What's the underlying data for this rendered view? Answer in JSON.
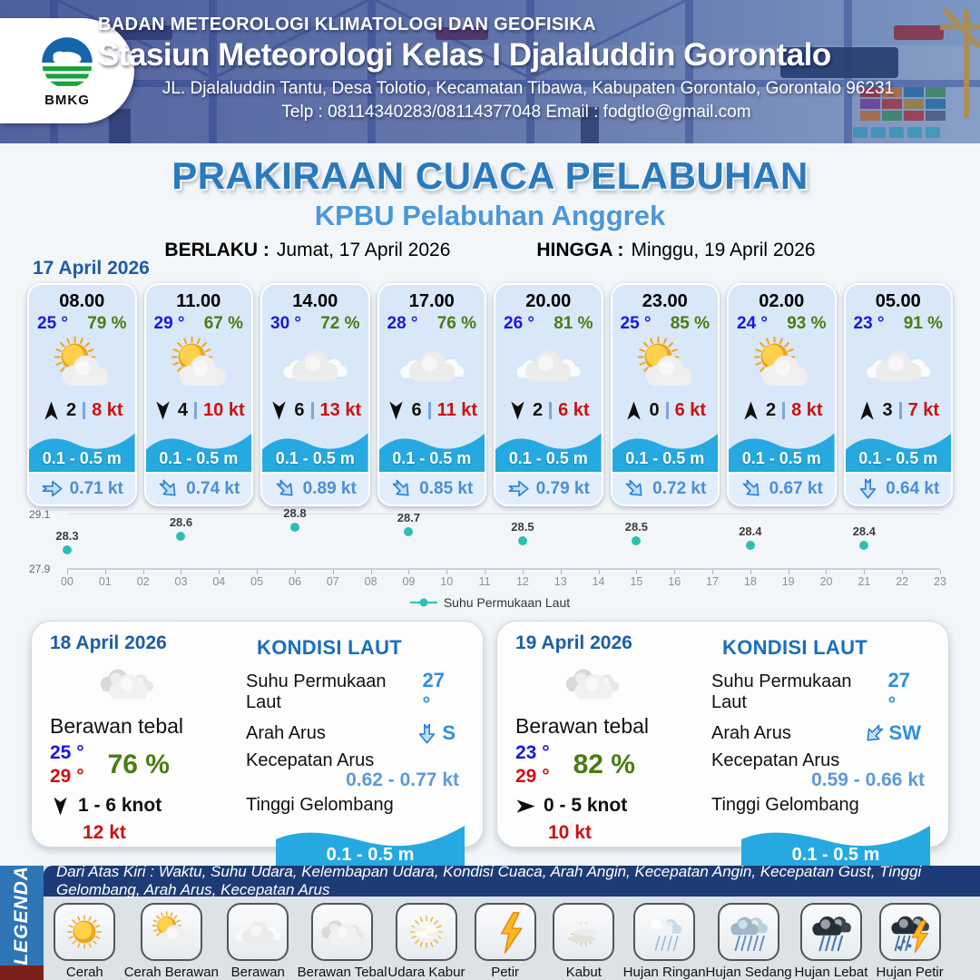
{
  "header": {
    "agency": "BADAN METEOROLOGI KLIMATOLOGI DAN GEOFISIKA",
    "station": "Stasiun Meteorologi Kelas I Djalaluddin Gorontalo",
    "address": "JL. Djalaluddin Tantu, Desa Tolotio, Kecamatan Tibawa, Kabupaten Gorontalo, Gorontalo 96231",
    "contact": "Telp : 08114340283/08114377048 Email : fodgtlo@gmail.com",
    "logo_text": "BMKG"
  },
  "title": {
    "main": "PRAKIRAAN CUACA PELABUHAN",
    "subtitle": "KPBU Pelabuhan Anggrek",
    "valid_from_label": "BERLAKU :",
    "valid_from": "Jumat, 17 April 2026",
    "valid_to_label": "HINGGA :",
    "valid_to": "Minggu, 19 April 2026"
  },
  "forecast_date": "17 April 2026",
  "hourly_cards": [
    {
      "time": "08.00",
      "temp": "25 °",
      "humidity": "79 %",
      "icon": "cerah-berawan",
      "wind_dir": "N",
      "wind_speed": "2",
      "gust": "8 kt",
      "wave": "0.1 - 0.5 m",
      "current_dir": "E",
      "current_speed": "0.71 kt"
    },
    {
      "time": "11.00",
      "temp": "29 °",
      "humidity": "67 %",
      "icon": "cerah-berawan",
      "wind_dir": "S",
      "wind_speed": "4",
      "gust": "10 kt",
      "wave": "0.1 - 0.5 m",
      "current_dir": "SE",
      "current_speed": "0.74 kt"
    },
    {
      "time": "14.00",
      "temp": "30 °",
      "humidity": "72 %",
      "icon": "berawan",
      "wind_dir": "S",
      "wind_speed": "6",
      "gust": "13 kt",
      "wave": "0.1 - 0.5 m",
      "current_dir": "SE",
      "current_speed": "0.89 kt"
    },
    {
      "time": "17.00",
      "temp": "28 °",
      "humidity": "76 %",
      "icon": "berawan",
      "wind_dir": "S",
      "wind_speed": "6",
      "gust": "11 kt",
      "wave": "0.1 - 0.5 m",
      "current_dir": "SE",
      "current_speed": "0.85 kt"
    },
    {
      "time": "20.00",
      "temp": "26 °",
      "humidity": "81 %",
      "icon": "berawan",
      "wind_dir": "S",
      "wind_speed": "2",
      "gust": "6 kt",
      "wave": "0.1 - 0.5 m",
      "current_dir": "E",
      "current_speed": "0.79 kt"
    },
    {
      "time": "23.00",
      "temp": "25 °",
      "humidity": "85 %",
      "icon": "cerah-berawan",
      "wind_dir": "N",
      "wind_speed": "0",
      "gust": "6 kt",
      "wave": "0.1 - 0.5 m",
      "current_dir": "SE",
      "current_speed": "0.72 kt"
    },
    {
      "time": "02.00",
      "temp": "24 °",
      "humidity": "93 %",
      "icon": "cerah-berawan",
      "wind_dir": "N",
      "wind_speed": "2",
      "gust": "8 kt",
      "wave": "0.1 - 0.5 m",
      "current_dir": "SE",
      "current_speed": "0.67 kt"
    },
    {
      "time": "05.00",
      "temp": "23 °",
      "humidity": "91 %",
      "icon": "berawan",
      "wind_dir": "N",
      "wind_speed": "3",
      "gust": "7 kt",
      "wave": "0.1 - 0.5 m",
      "current_dir": "S",
      "current_speed": "0.64 kt"
    }
  ],
  "chart_data": {
    "type": "scatter",
    "x": [
      0,
      3,
      6,
      9,
      12,
      15,
      18,
      21
    ],
    "values": [
      28.3,
      28.6,
      28.8,
      28.7,
      28.5,
      28.5,
      28.4,
      28.4
    ],
    "x_ticks": [
      "00",
      "01",
      "02",
      "03",
      "04",
      "05",
      "06",
      "07",
      "08",
      "09",
      "10",
      "11",
      "12",
      "13",
      "14",
      "15",
      "16",
      "17",
      "18",
      "19",
      "20",
      "21",
      "22",
      "23"
    ],
    "ylim": [
      27.9,
      29.1
    ],
    "y_tick_labels": [
      "27.9",
      "29.1"
    ],
    "legend": "Suhu Permukaan Laut",
    "dot_color": "#2bc0b4",
    "grid": "top line only",
    "legend_position": "bottom center"
  },
  "daily_cards": [
    {
      "date": "18 April 2026",
      "icon": "berawan-tebal",
      "condition": "Berawan tebal",
      "temp_min": "25 °",
      "temp_max": "29 °",
      "humidity": "76 %",
      "wind_dir": "S",
      "wind_range": "1  - 6 knot",
      "gust": "12 kt",
      "sea": {
        "heading": "KONDISI LAUT",
        "sst_label": "Suhu Permukaan Laut",
        "sst": "27 °",
        "current_dir_label": "Arah Arus",
        "current_dir": "S",
        "current_dir_text": "S",
        "current_speed_label": "Kecepatan Arus",
        "current_speed": "0.62  - 0.77 kt",
        "wave_label": "Tinggi Gelombang",
        "wave": "0.1 - 0.5 m"
      }
    },
    {
      "date": "19 April 2026",
      "icon": "berawan-tebal",
      "condition": "Berawan tebal",
      "temp_min": "23 °",
      "temp_max": "29 °",
      "humidity": "82 %",
      "wind_dir": "E",
      "wind_range": "0  - 5 knot",
      "gust": "10 kt",
      "sea": {
        "heading": "KONDISI LAUT",
        "sst_label": "Suhu Permukaan Laut",
        "sst": "27 °",
        "current_dir_label": "Arah Arus",
        "current_dir": "SW",
        "current_dir_text": "SW",
        "current_speed_label": "Kecepatan Arus",
        "current_speed": "0.59 - 0.66 kt",
        "wave_label": "Tinggi Gelombang",
        "wave": "0.1 - 0.5 m"
      }
    }
  ],
  "legend": {
    "title": "LEGENDA",
    "caption": "Dari Atas Kiri : Waktu, Suhu Udara, Kelembapan Udara, Kondisi Cuaca, Arah Angin, Kecepatan Angin, Kecepatan Gust, Tinggi Gelombang, Arah Arus, Kecepatan Arus",
    "items": [
      {
        "label": "Cerah",
        "icon": "cerah"
      },
      {
        "label": "Cerah Berawan",
        "icon": "cerah-berawan"
      },
      {
        "label": "Berawan",
        "icon": "berawan"
      },
      {
        "label": "Berawan Tebal",
        "icon": "berawan-tebal"
      },
      {
        "label": "Udara Kabur",
        "icon": "udara-kabur"
      },
      {
        "label": "Petir",
        "icon": "petir"
      },
      {
        "label": "Kabut",
        "icon": "kabut"
      },
      {
        "label": "Hujan Ringan",
        "icon": "hujan-ringan"
      },
      {
        "label": "Hujan Sedang",
        "icon": "hujan-sedang"
      },
      {
        "label": "Hujan Lebat",
        "icon": "hujan-lebat"
      },
      {
        "label": "Hujan Petir",
        "icon": "hujan-petir"
      }
    ]
  },
  "colors": {
    "title_blue": "#2a79bd",
    "subtitle_blue": "#4a97da",
    "temperature_blue": "#1a16e3",
    "humidity_green": "#4a7c10",
    "gust_red": "#cc1111",
    "wave_blue": "#25a9e0",
    "chart_teal": "#2bc0b4",
    "current_blue": "#4a8fd6",
    "legend_navy": "#1d3b77",
    "legenda_bar_blue": "#2e75b6"
  }
}
